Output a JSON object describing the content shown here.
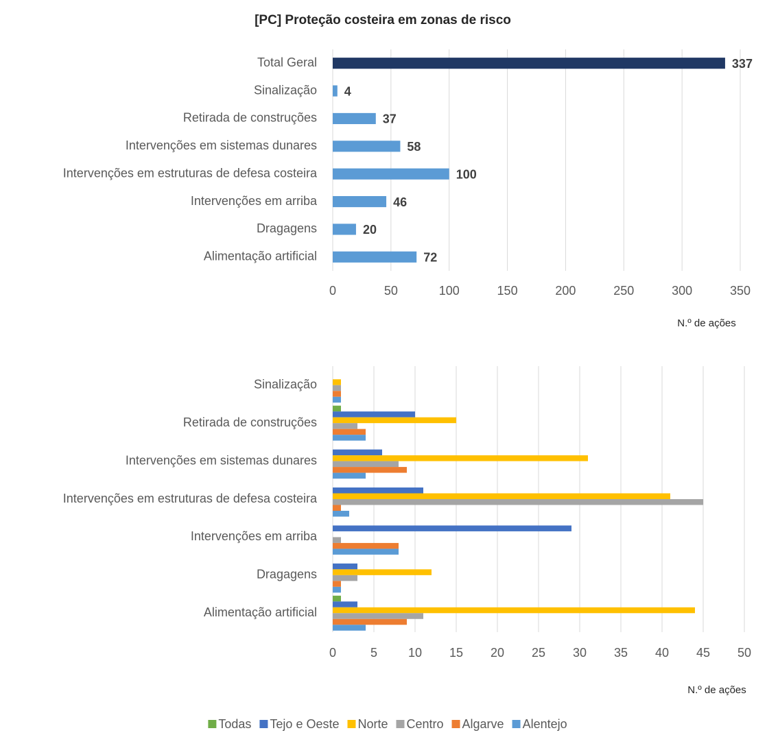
{
  "chart_data": [
    {
      "type": "bar",
      "orientation": "horizontal",
      "title": "[PC] Proteção costeira em zonas de risco",
      "x_label": "N.º de ações",
      "categories": [
        "Total Geral",
        "Sinalização",
        "Retirada de construções",
        "Intervenções em sistemas dunares",
        "Intervenções em estruturas de defesa costeira",
        "Intervenções em arriba",
        "Dragagens",
        "Alimentação artificial"
      ],
      "values": [
        337,
        4,
        37,
        58,
        100,
        46,
        20,
        72
      ],
      "colors": [
        "#203864",
        "#5b9bd5",
        "#5b9bd5",
        "#5b9bd5",
        "#5b9bd5",
        "#5b9bd5",
        "#5b9bd5",
        "#5b9bd5"
      ],
      "xlim": [
        0,
        350
      ],
      "xticks": [
        0,
        50,
        100,
        150,
        200,
        250,
        300,
        350
      ],
      "grid": true
    },
    {
      "type": "bar",
      "orientation": "horizontal",
      "x_label": "N.º de ações",
      "categories": [
        "Sinalização",
        "Retirada de construções",
        "Intervenções em sistemas dunares",
        "Intervenções em estruturas de defesa costeira",
        "Intervenções em arriba",
        "Dragagens",
        "Alimentação artificial"
      ],
      "series": [
        {
          "name": "Todas",
          "color": "#70ad47",
          "values": [
            0,
            1,
            0,
            0,
            0,
            0,
            1
          ]
        },
        {
          "name": "Tejo e Oeste",
          "color": "#4472c4",
          "values": [
            0,
            10,
            6,
            11,
            29,
            3,
            3
          ]
        },
        {
          "name": "Norte",
          "color": "#ffc000",
          "values": [
            1,
            15,
            31,
            41,
            0,
            12,
            44
          ]
        },
        {
          "name": "Centro",
          "color": "#a5a5a5",
          "values": [
            1,
            3,
            8,
            45,
            1,
            3,
            11
          ]
        },
        {
          "name": "Algarve",
          "color": "#ed7d31",
          "values": [
            1,
            4,
            9,
            1,
            8,
            1,
            9
          ]
        },
        {
          "name": "Alentejo",
          "color": "#5b9bd5",
          "values": [
            1,
            4,
            4,
            2,
            8,
            1,
            4
          ]
        }
      ],
      "xlim": [
        0,
        50
      ],
      "xticks": [
        0,
        5,
        10,
        15,
        20,
        25,
        30,
        35,
        40,
        45,
        50
      ],
      "grid": true,
      "legend": "bottom"
    }
  ]
}
